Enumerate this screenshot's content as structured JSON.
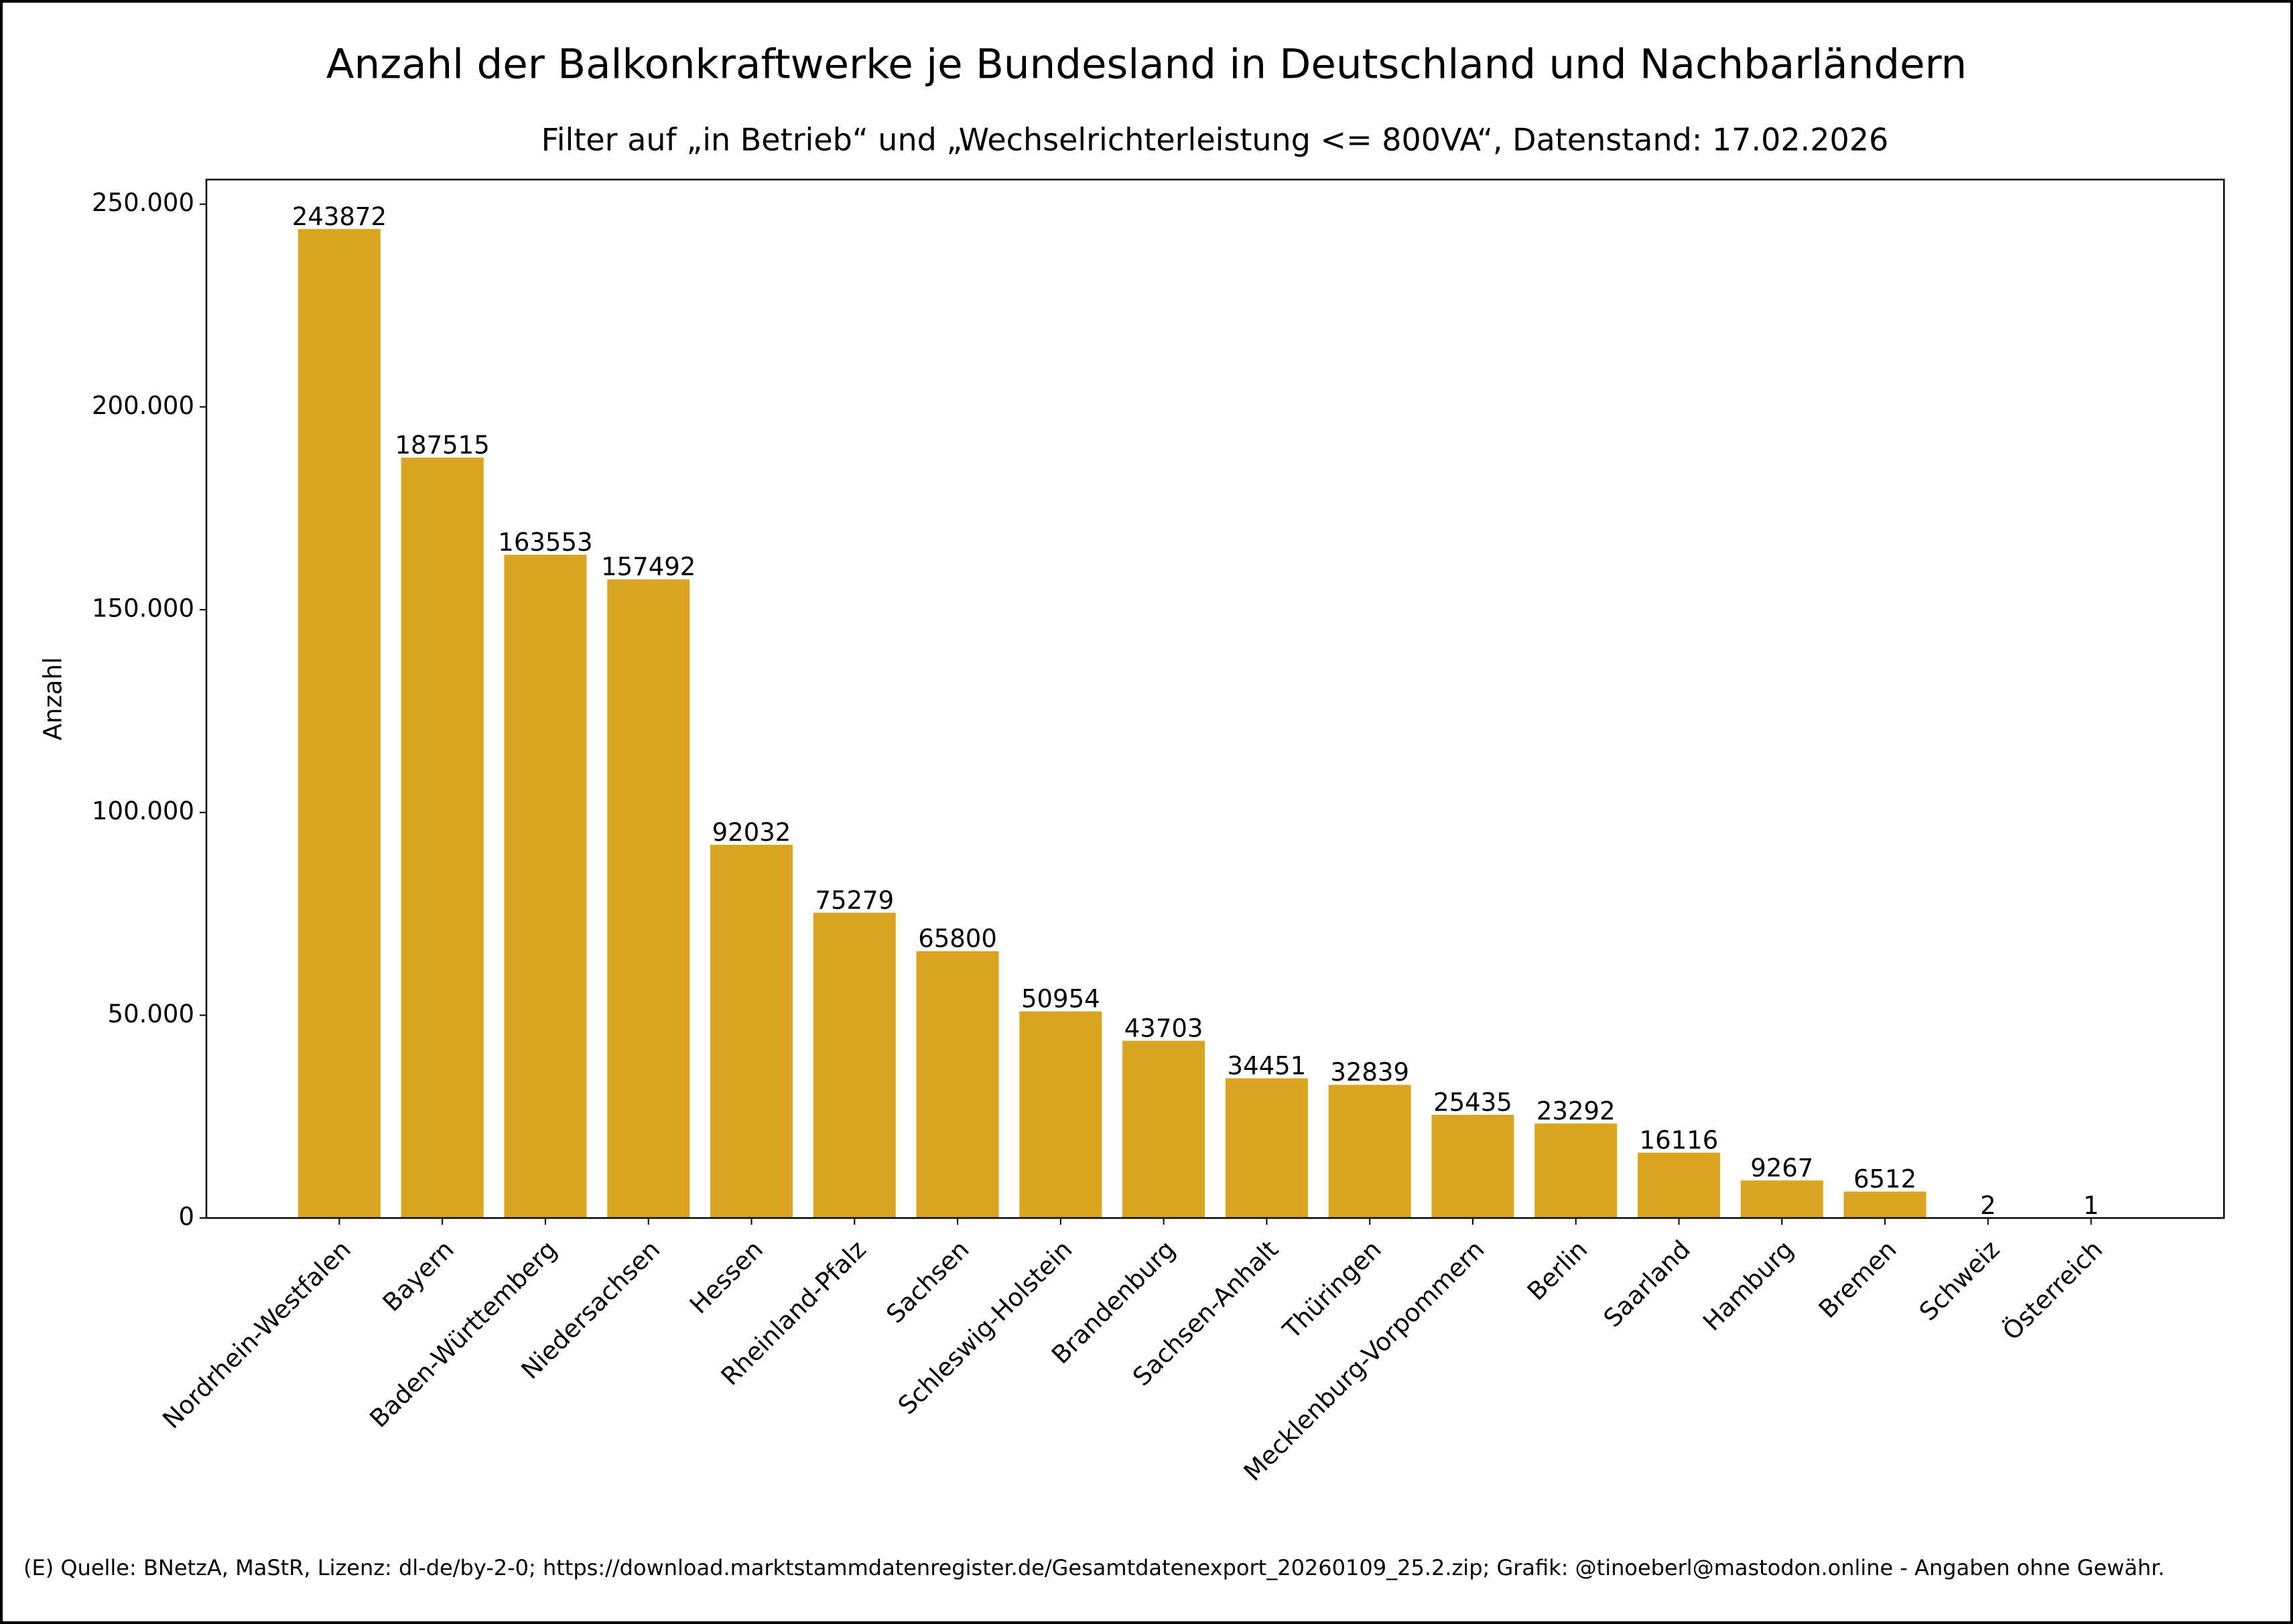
{
  "chart_data": {
    "type": "bar",
    "title": "Anzahl der Balkonkraftwerke je Bundesland in Deutschland und Nachbarländern",
    "subtitle": "Filter auf „in Betrieb“ und „Wechselrichterleistung <= 800VA“, Datenstand: 17.02.2026",
    "y_label": "Anzahl",
    "footer": "(E) Quelle: BNetzA, MaStR, Lizenz: dl-de/by-2-0; https://download.marktstammdatenregister.de/Gesamtdatenexport_20260109_25.2.zip; Grafik: @tinoeberl@mastodon.online - Angaben ohne Gewähr.",
    "categories": [
      "Nordrhein-Westfalen",
      "Bayern",
      "Baden-Württemberg",
      "Niedersachsen",
      "Hessen",
      "Rheinland-Pfalz",
      "Sachsen",
      "Schleswig-Holstein",
      "Brandenburg",
      "Sachsen-Anhalt",
      "Thüringen",
      "Mecklenburg-Vorpommern",
      "Berlin",
      "Saarland",
      "Hamburg",
      "Bremen",
      "Schweiz",
      "Österreich"
    ],
    "values": [
      243872,
      187515,
      163553,
      157492,
      92032,
      75279,
      65800,
      50954,
      43703,
      34451,
      32839,
      25435,
      23292,
      16116,
      9267,
      6512,
      2,
      1
    ],
    "color": "#DAA520",
    "ylim": [
      0,
      256066
    ],
    "yticks": [
      0,
      {
        "value": 50000,
        "label": "50.000"
      },
      {
        "value": 100000,
        "label": "100.000"
      },
      {
        "value": 150000,
        "label": "150.000"
      },
      {
        "value": 200000,
        "label": "200.000"
      },
      {
        "value": 250000,
        "label": "250.000"
      }
    ]
  }
}
